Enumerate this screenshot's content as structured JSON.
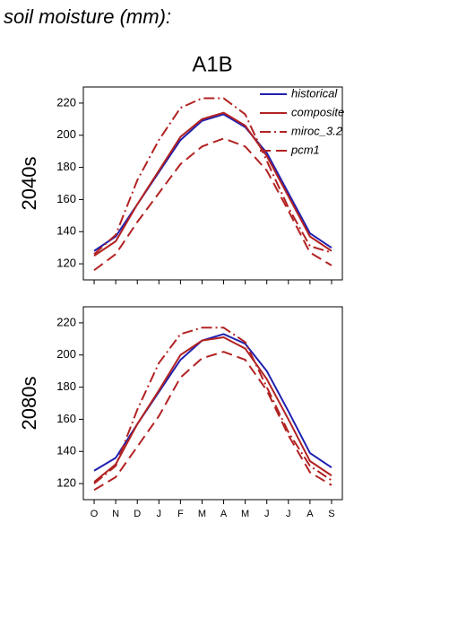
{
  "header": {
    "title": "soil moisture (mm):",
    "scenario": "A1B"
  },
  "chart_data": [
    {
      "type": "line",
      "ylabel": "2040s",
      "categories": [
        null,
        null,
        null,
        null,
        null,
        null,
        null,
        null,
        null,
        null,
        null,
        null
      ],
      "ylim": [
        110,
        230
      ],
      "yticks": [
        120,
        140,
        160,
        180,
        200,
        220
      ],
      "legend": "upper right",
      "series": [
        {
          "name": "historical",
          "color": "#2020b0",
          "dash": "solid",
          "values": [
            128,
            137,
            157,
            177,
            197,
            209,
            213,
            205,
            189,
            164,
            139,
            130
          ]
        },
        {
          "name": "composite",
          "color": "#b22222",
          "dash": "solid",
          "values": [
            125,
            134,
            157,
            178,
            199,
            210,
            214,
            206,
            187,
            162,
            137,
            128
          ]
        },
        {
          "name": "miroc_3.2",
          "color": "#b22222",
          "dash": "dashdot",
          "values": [
            126,
            138,
            172,
            197,
            217,
            223,
            223,
            213,
            184,
            155,
            131,
            127
          ]
        },
        {
          "name": "pcm1",
          "color": "#b22222",
          "dash": "dashed",
          "values": [
            116,
            126,
            146,
            164,
            182,
            193,
            198,
            193,
            178,
            153,
            127,
            119
          ]
        }
      ]
    },
    {
      "type": "line",
      "ylabel": "2080s",
      "categories": [
        "O",
        "N",
        "D",
        "J",
        "F",
        "M",
        "A",
        "M",
        "J",
        "J",
        "A",
        "S"
      ],
      "ylim": [
        110,
        230
      ],
      "yticks": [
        120,
        140,
        160,
        180,
        200,
        220
      ],
      "series": [
        {
          "color": "#2020b0",
          "dash": "solid",
          "values": [
            128,
            136,
            157,
            177,
            197,
            209,
            213,
            207,
            190,
            165,
            139,
            130
          ]
        },
        {
          "color": "#b22222",
          "dash": "solid",
          "values": [
            121,
            132,
            157,
            178,
            200,
            209,
            211,
            204,
            185,
            160,
            134,
            125
          ]
        },
        {
          "color": "#b22222",
          "dash": "dashdot",
          "values": [
            120,
            131,
            166,
            195,
            213,
            217,
            217,
            208,
            180,
            152,
            131,
            122
          ]
        },
        {
          "color": "#b22222",
          "dash": "dashed",
          "values": [
            116,
            124,
            143,
            162,
            186,
            198,
            202,
            197,
            178,
            150,
            127,
            119
          ]
        }
      ]
    }
  ]
}
